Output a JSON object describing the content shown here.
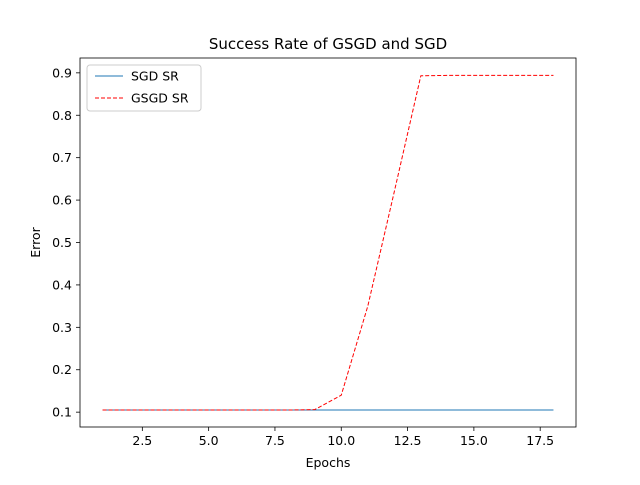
{
  "chart_data": {
    "type": "line",
    "title": "Success Rate of GSGD and SGD",
    "xlabel": "Epochs",
    "ylabel": "Error",
    "xlim": [
      0.15,
      18.85
    ],
    "ylim": [
      0.065,
      0.935
    ],
    "x": [
      1,
      2,
      3,
      4,
      5,
      6,
      7,
      8,
      9,
      10,
      11,
      12,
      13,
      14,
      15,
      16,
      17,
      18
    ],
    "xticks": [
      2.5,
      5.0,
      7.5,
      10.0,
      12.5,
      15.0,
      17.5
    ],
    "xtick_labels": [
      "2.5",
      "5.0",
      "7.5",
      "10.0",
      "12.5",
      "15.0",
      "17.5"
    ],
    "yticks": [
      0.1,
      0.2,
      0.3,
      0.4,
      0.5,
      0.6,
      0.7,
      0.8,
      0.9
    ],
    "ytick_labels": [
      "0.1",
      "0.2",
      "0.3",
      "0.4",
      "0.5",
      "0.6",
      "0.7",
      "0.8",
      "0.9"
    ],
    "grid": false,
    "legend_position": "top-left",
    "series": [
      {
        "name": "SGD SR",
        "color": "#1f77b4",
        "style": "solid",
        "values": [
          0.105,
          0.105,
          0.105,
          0.105,
          0.105,
          0.105,
          0.105,
          0.105,
          0.105,
          0.105,
          0.105,
          0.105,
          0.105,
          0.105,
          0.105,
          0.105,
          0.105,
          0.105
        ]
      },
      {
        "name": "GSGD SR",
        "color": "#ff0000",
        "style": "dashed",
        "values": [
          0.105,
          0.105,
          0.105,
          0.105,
          0.105,
          0.105,
          0.105,
          0.105,
          0.106,
          0.14,
          0.35,
          0.62,
          0.893,
          0.894,
          0.894,
          0.894,
          0.894,
          0.894
        ]
      }
    ]
  }
}
